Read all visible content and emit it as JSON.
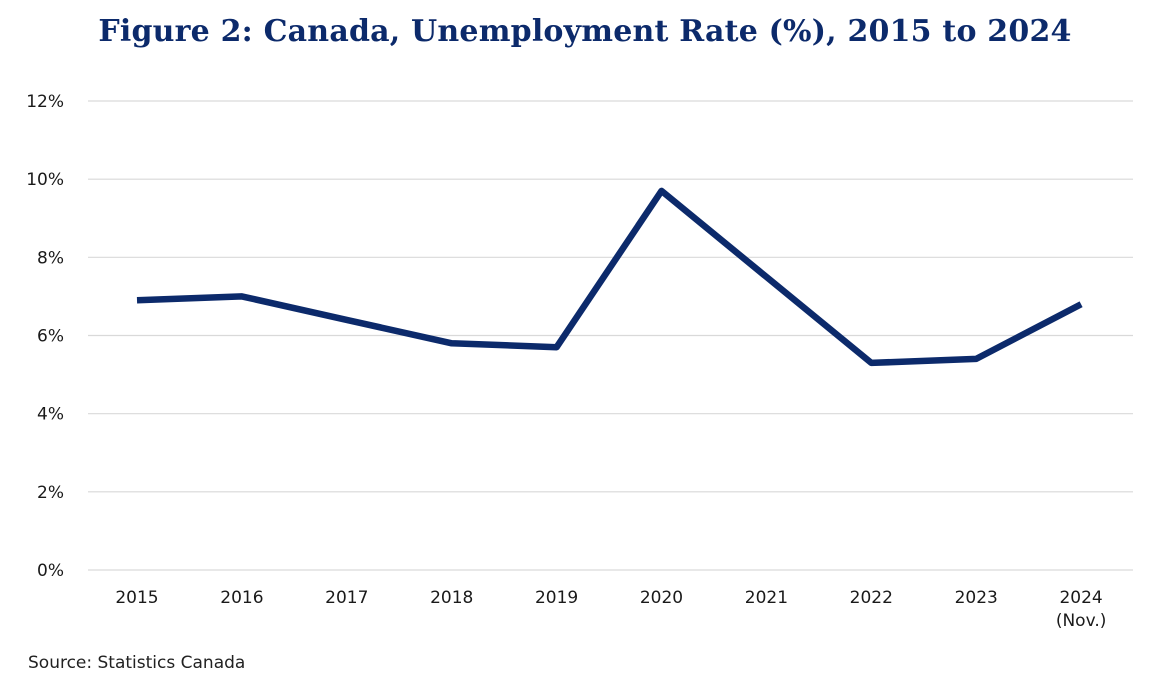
{
  "title": "Figure 2: Canada, Unemployment Rate (%), 2015 to 2024",
  "source": "Source: Statistics Canada",
  "chart_data": {
    "type": "line",
    "categories": [
      "2015",
      "2016",
      "2017",
      "2018",
      "2019",
      "2020",
      "2021",
      "2022",
      "2023",
      "2024"
    ],
    "category_sublabels": [
      "",
      "",
      "",
      "",
      "",
      "",
      "",
      "",
      "",
      "(Nov.)"
    ],
    "series": [
      {
        "values": [
          6.9,
          7.0,
          6.4,
          5.8,
          5.7,
          9.7,
          7.5,
          5.3,
          5.4,
          6.8
        ]
      }
    ],
    "y_ticks": [
      "0%",
      "2%",
      "4%",
      "6%",
      "8%",
      "10%",
      "12%"
    ],
    "ylim": [
      0,
      12
    ],
    "y_unit": "%",
    "grid": true,
    "colors": {
      "line": "#0c2a6b",
      "grid": "#d9d9d9",
      "title": "#0c2a6b"
    }
  }
}
